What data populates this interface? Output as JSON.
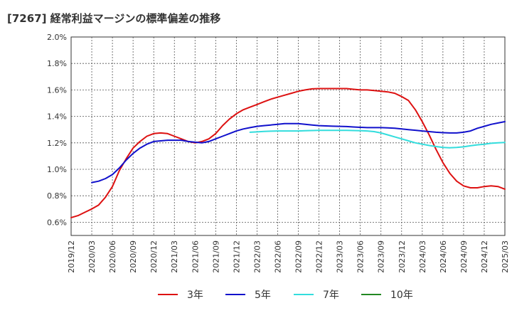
{
  "chart_data": {
    "type": "line",
    "title": "[7267]  経常利益マージンの標準偏差の推移",
    "xlabel": "",
    "ylabel": "",
    "ylim": [
      0.5,
      2.0
    ],
    "yticks": [
      "0.6%",
      "0.8%",
      "1.0%",
      "1.2%",
      "1.4%",
      "1.6%",
      "1.8%",
      "2.0%"
    ],
    "xticks": [
      "2019/12",
      "2020/03",
      "2020/06",
      "2020/09",
      "2020/12",
      "2021/03",
      "2021/06",
      "2021/09",
      "2021/12",
      "2022/03",
      "2022/06",
      "2022/09",
      "2022/12",
      "2023/03",
      "2023/06",
      "2023/09",
      "2023/12",
      "2024/03",
      "2024/06",
      "2024/09",
      "2024/12",
      "2025/03"
    ],
    "grid": true,
    "legend_position": "bottom",
    "series": [
      {
        "name": "3年",
        "color": "#dd1111",
        "points": [
          [
            "2019/12",
            0.635
          ],
          [
            "2020/01",
            0.65
          ],
          [
            "2020/02",
            0.675
          ],
          [
            "2020/03",
            0.7
          ],
          [
            "2020/04",
            0.73
          ],
          [
            "2020/05",
            0.79
          ],
          [
            "2020/06",
            0.87
          ],
          [
            "2020/07",
            0.99
          ],
          [
            "2020/08",
            1.08
          ],
          [
            "2020/09",
            1.16
          ],
          [
            "2020/10",
            1.21
          ],
          [
            "2020/11",
            1.25
          ],
          [
            "2020/12",
            1.27
          ],
          [
            "2021/01",
            1.275
          ],
          [
            "2021/02",
            1.27
          ],
          [
            "2021/03",
            1.25
          ],
          [
            "2021/04",
            1.23
          ],
          [
            "2021/05",
            1.21
          ],
          [
            "2021/06",
            1.2
          ],
          [
            "2021/07",
            1.21
          ],
          [
            "2021/08",
            1.23
          ],
          [
            "2021/09",
            1.27
          ],
          [
            "2021/10",
            1.33
          ],
          [
            "2021/11",
            1.38
          ],
          [
            "2021/12",
            1.42
          ],
          [
            "2022/01",
            1.45
          ],
          [
            "2022/02",
            1.47
          ],
          [
            "2022/03",
            1.49
          ],
          [
            "2022/04",
            1.51
          ],
          [
            "2022/05",
            1.53
          ],
          [
            "2022/06",
            1.545
          ],
          [
            "2022/07",
            1.56
          ],
          [
            "2022/08",
            1.575
          ],
          [
            "2022/09",
            1.59
          ],
          [
            "2022/10",
            1.6
          ],
          [
            "2022/11",
            1.608
          ],
          [
            "2022/12",
            1.61
          ],
          [
            "2023/01",
            1.61
          ],
          [
            "2023/02",
            1.61
          ],
          [
            "2023/03",
            1.61
          ],
          [
            "2023/04",
            1.61
          ],
          [
            "2023/05",
            1.605
          ],
          [
            "2023/06",
            1.6
          ],
          [
            "2023/07",
            1.6
          ],
          [
            "2023/08",
            1.595
          ],
          [
            "2023/09",
            1.59
          ],
          [
            "2023/10",
            1.585
          ],
          [
            "2023/11",
            1.575
          ],
          [
            "2023/12",
            1.55
          ],
          [
            "2024/01",
            1.52
          ],
          [
            "2024/02",
            1.45
          ],
          [
            "2024/03",
            1.36
          ],
          [
            "2024/04",
            1.26
          ],
          [
            "2024/05",
            1.15
          ],
          [
            "2024/06",
            1.05
          ],
          [
            "2024/07",
            0.97
          ],
          [
            "2024/08",
            0.91
          ],
          [
            "2024/09",
            0.875
          ],
          [
            "2024/10",
            0.86
          ],
          [
            "2024/11",
            0.86
          ],
          [
            "2024/12",
            0.87
          ],
          [
            "2025/01",
            0.875
          ],
          [
            "2025/02",
            0.87
          ],
          [
            "2025/03",
            0.85
          ]
        ]
      },
      {
        "name": "5年",
        "color": "#1111cc",
        "points": [
          [
            "2020/03",
            0.9
          ],
          [
            "2020/04",
            0.91
          ],
          [
            "2020/05",
            0.93
          ],
          [
            "2020/06",
            0.96
          ],
          [
            "2020/07",
            1.01
          ],
          [
            "2020/08",
            1.07
          ],
          [
            "2020/09",
            1.12
          ],
          [
            "2020/10",
            1.16
          ],
          [
            "2020/11",
            1.19
          ],
          [
            "2020/12",
            1.21
          ],
          [
            "2021/01",
            1.215
          ],
          [
            "2021/02",
            1.22
          ],
          [
            "2021/03",
            1.22
          ],
          [
            "2021/04",
            1.22
          ],
          [
            "2021/05",
            1.21
          ],
          [
            "2021/06",
            1.205
          ],
          [
            "2021/07",
            1.2
          ],
          [
            "2021/08",
            1.21
          ],
          [
            "2021/09",
            1.23
          ],
          [
            "2021/10",
            1.25
          ],
          [
            "2021/11",
            1.27
          ],
          [
            "2021/12",
            1.29
          ],
          [
            "2022/01",
            1.305
          ],
          [
            "2022/02",
            1.315
          ],
          [
            "2022/03",
            1.325
          ],
          [
            "2022/04",
            1.33
          ],
          [
            "2022/05",
            1.335
          ],
          [
            "2022/06",
            1.34
          ],
          [
            "2022/07",
            1.345
          ],
          [
            "2022/08",
            1.345
          ],
          [
            "2022/09",
            1.345
          ],
          [
            "2022/10",
            1.34
          ],
          [
            "2022/11",
            1.335
          ],
          [
            "2022/12",
            1.33
          ],
          [
            "2023/01",
            1.328
          ],
          [
            "2023/02",
            1.326
          ],
          [
            "2023/03",
            1.325
          ],
          [
            "2023/04",
            1.323
          ],
          [
            "2023/05",
            1.32
          ],
          [
            "2023/06",
            1.317
          ],
          [
            "2023/07",
            1.315
          ],
          [
            "2023/08",
            1.315
          ],
          [
            "2023/09",
            1.315
          ],
          [
            "2023/10",
            1.313
          ],
          [
            "2023/11",
            1.31
          ],
          [
            "2023/12",
            1.305
          ],
          [
            "2024/01",
            1.3
          ],
          [
            "2024/02",
            1.295
          ],
          [
            "2024/03",
            1.29
          ],
          [
            "2024/04",
            1.285
          ],
          [
            "2024/05",
            1.28
          ],
          [
            "2024/06",
            1.277
          ],
          [
            "2024/07",
            1.275
          ],
          [
            "2024/08",
            1.275
          ],
          [
            "2024/09",
            1.28
          ],
          [
            "2024/10",
            1.29
          ],
          [
            "2024/11",
            1.31
          ],
          [
            "2024/12",
            1.325
          ],
          [
            "2025/01",
            1.34
          ],
          [
            "2025/02",
            1.35
          ],
          [
            "2025/03",
            1.36
          ]
        ]
      },
      {
        "name": "7年",
        "color": "#33dddd",
        "points": [
          [
            "2022/02",
            1.28
          ],
          [
            "2022/03",
            1.283
          ],
          [
            "2022/04",
            1.286
          ],
          [
            "2022/05",
            1.288
          ],
          [
            "2022/06",
            1.29
          ],
          [
            "2022/07",
            1.29
          ],
          [
            "2022/08",
            1.29
          ],
          [
            "2022/09",
            1.29
          ],
          [
            "2022/10",
            1.292
          ],
          [
            "2022/11",
            1.293
          ],
          [
            "2022/12",
            1.294
          ],
          [
            "2023/01",
            1.294
          ],
          [
            "2023/02",
            1.294
          ],
          [
            "2023/03",
            1.294
          ],
          [
            "2023/04",
            1.294
          ],
          [
            "2023/05",
            1.293
          ],
          [
            "2023/06",
            1.292
          ],
          [
            "2023/07",
            1.29
          ],
          [
            "2023/08",
            1.285
          ],
          [
            "2023/09",
            1.275
          ],
          [
            "2023/10",
            1.26
          ],
          [
            "2023/11",
            1.245
          ],
          [
            "2023/12",
            1.23
          ],
          [
            "2024/01",
            1.215
          ],
          [
            "2024/02",
            1.2
          ],
          [
            "2024/03",
            1.19
          ],
          [
            "2024/04",
            1.18
          ],
          [
            "2024/05",
            1.172
          ],
          [
            "2024/06",
            1.165
          ],
          [
            "2024/07",
            1.163
          ],
          [
            "2024/08",
            1.165
          ],
          [
            "2024/09",
            1.17
          ],
          [
            "2024/10",
            1.178
          ],
          [
            "2024/11",
            1.185
          ],
          [
            "2024/12",
            1.19
          ],
          [
            "2025/01",
            1.197
          ],
          [
            "2025/02",
            1.2
          ],
          [
            "2025/03",
            1.203
          ]
        ]
      },
      {
        "name": "10年",
        "color": "#228822",
        "points": []
      }
    ]
  }
}
